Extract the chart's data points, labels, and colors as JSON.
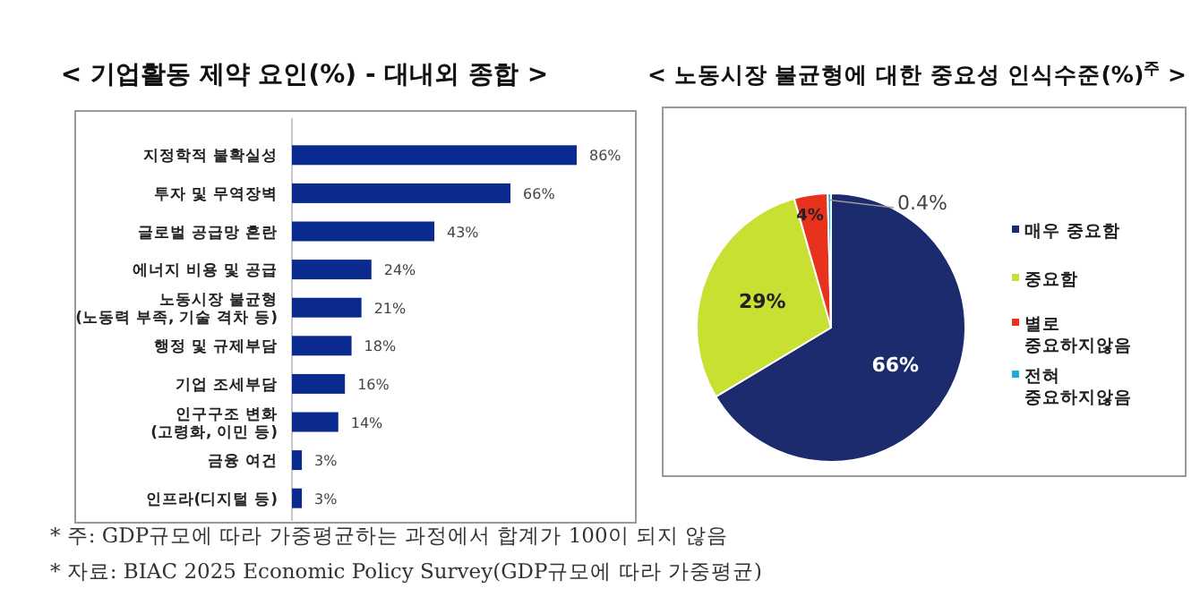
{
  "chart_data": [
    {
      "type": "bar",
      "orientation": "horizontal",
      "title": "< 기업활동 제약 요인(%) - 대내외 종합 >",
      "categories": [
        "지정학적 불확실성",
        "투자 및 무역장벽",
        "글로벌 공급망 혼란",
        "에너지 비용 및 공급",
        "노동시장 불균형\n(노동력 부족, 기술 격차 등)",
        "행정 및 규제부담",
        "기업 조세부담",
        "인구구조 변화\n(고령화, 이민 등)",
        "금융 여건",
        "인프라(디지털 등)"
      ],
      "values": [
        86,
        66,
        43,
        24,
        21,
        18,
        16,
        14,
        3,
        3
      ],
      "value_labels": [
        "86%",
        "66%",
        "43%",
        "24%",
        "21%",
        "18%",
        "16%",
        "14%",
        "3%",
        "3%"
      ],
      "color": "#0b2a8f",
      "annotations": [
        "* 주: GDP규모에 따라 가중평균하는 과정에서 합계가 100이 되지 않음",
        "* 자료: BIAC 2025 Economic Policy Survey(GDP규모에 따라 가중평균)"
      ]
    },
    {
      "type": "pie",
      "title": "< 노동시장 불균형에 대한 중요성 인식수준(%)$^{주}$ >",
      "categories": [
        "매우 중요함",
        "중요함",
        "별로\n중요하지않음",
        "전혀\n중요하지않음"
      ],
      "values": [
        66,
        29,
        4,
        0.4
      ],
      "value_labels": [
        "66%",
        "29%",
        "4%",
        "0.4%"
      ],
      "colors": [
        "#1c2a6e",
        "#c8e032",
        "#e8321e",
        "#22a8e0"
      ],
      "legend": "right"
    }
  ]
}
